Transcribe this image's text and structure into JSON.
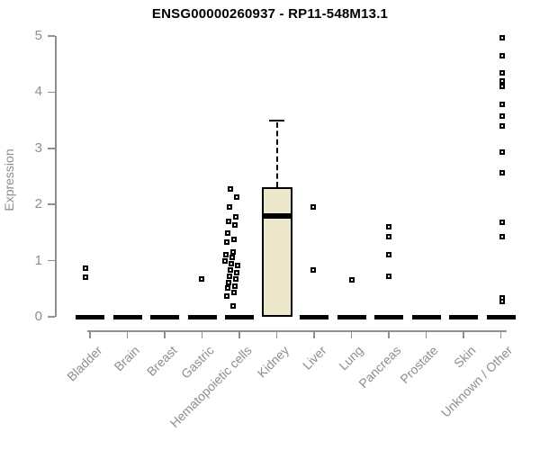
{
  "chart_data": {
    "type": "boxplot",
    "title": "ENSG00000260937 - RP11-548M13.1",
    "ylabel": "Expression",
    "ylim": [
      0,
      5
    ],
    "yticks": [
      0,
      1,
      2,
      3,
      4,
      5
    ],
    "grid": false,
    "x_label_rotation_deg": 45,
    "categories": [
      "Bladder",
      "Brain",
      "Breast",
      "Gastric",
      "Hematopoietic cells",
      "Kidney",
      "Liver",
      "Lung",
      "Pancreas",
      "Prostate",
      "Skin",
      "Unknown / Other"
    ],
    "boxes": [
      {
        "category": "Bladder",
        "q1": 0,
        "median": 0,
        "q3": 0,
        "whisker_low": 0,
        "whisker_high": 0,
        "outliers": [
          0.87,
          0.71
        ]
      },
      {
        "category": "Brain",
        "q1": 0,
        "median": 0,
        "q3": 0,
        "whisker_low": 0,
        "whisker_high": 0,
        "outliers": []
      },
      {
        "category": "Breast",
        "q1": 0,
        "median": 0,
        "q3": 0,
        "whisker_low": 0,
        "whisker_high": 0,
        "outliers": []
      },
      {
        "category": "Gastric",
        "q1": 0,
        "median": 0,
        "q3": 0,
        "whisker_low": 0,
        "whisker_high": 0,
        "outliers": [
          0.68
        ]
      },
      {
        "category": "Hematopoietic cells",
        "q1": 0,
        "median": 0,
        "q3": 0,
        "whisker_low": 0,
        "whisker_high": 0,
        "outliers": [
          2.27,
          2.13,
          1.95,
          1.78,
          1.7,
          1.64,
          1.49,
          1.38,
          1.33,
          1.15,
          1.1,
          1.05,
          1.0,
          0.95,
          0.91,
          0.83,
          0.78,
          0.72,
          0.67,
          0.61,
          0.55,
          0.51,
          0.43,
          0.37,
          0.19
        ]
      },
      {
        "category": "Kidney",
        "q1": 0,
        "median": 1.8,
        "q3": 2.3,
        "whisker_low": 0,
        "whisker_high": 3.5,
        "outliers": []
      },
      {
        "category": "Liver",
        "q1": 0,
        "median": 0,
        "q3": 0,
        "whisker_low": 0,
        "whisker_high": 0,
        "outliers": [
          1.95,
          0.83
        ]
      },
      {
        "category": "Lung",
        "q1": 0,
        "median": 0,
        "q3": 0,
        "whisker_low": 0,
        "whisker_high": 0,
        "outliers": [
          0.65
        ]
      },
      {
        "category": "Pancreas",
        "q1": 0,
        "median": 0,
        "q3": 0,
        "whisker_low": 0,
        "whisker_high": 0,
        "outliers": [
          1.61,
          1.43,
          1.1,
          0.72
        ]
      },
      {
        "category": "Prostate",
        "q1": 0,
        "median": 0,
        "q3": 0,
        "whisker_low": 0,
        "whisker_high": 0,
        "outliers": []
      },
      {
        "category": "Skin",
        "q1": 0,
        "median": 0,
        "q3": 0,
        "whisker_low": 0,
        "whisker_high": 0,
        "outliers": []
      },
      {
        "category": "Unknown / Other",
        "q1": 0,
        "median": 0,
        "q3": 0,
        "whisker_low": 0,
        "whisker_high": 0,
        "outliers": [
          4.97,
          4.65,
          4.35,
          4.2,
          4.1,
          3.79,
          3.58,
          3.4,
          2.94,
          2.57,
          1.69,
          1.42,
          0.33,
          0.27
        ]
      }
    ],
    "colors": {
      "box_fill": "#EDE8CB",
      "box_border": "#000000",
      "median": "#000000",
      "point": "#000000",
      "axis": "#8e8e8e",
      "tick_label": "#8e8e8e",
      "title": "#000000"
    }
  }
}
